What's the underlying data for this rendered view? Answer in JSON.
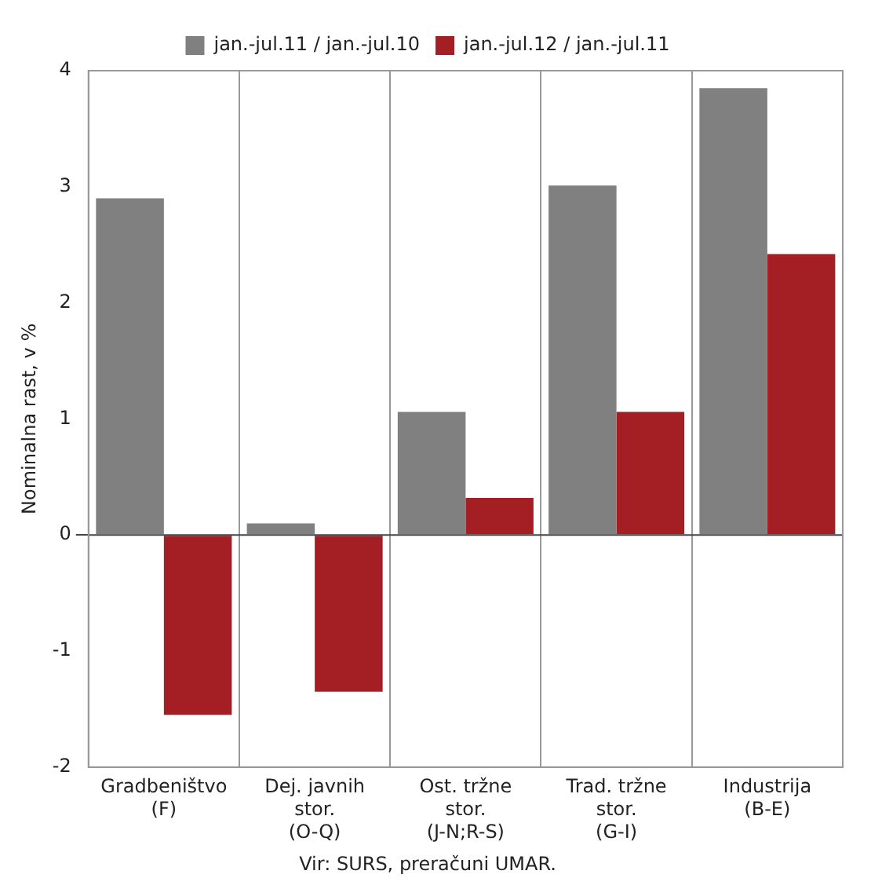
{
  "chart_data": {
    "type": "bar",
    "ylabel": "Nominalna rast, v %",
    "categories": [
      "Gradbeništvo\n(F)",
      "Dej. javnih\nstor.\n(O-Q)",
      "Ost. tržne\nstor.\n(J-N;R-S)",
      "Trad. tržne\nstor.\n(G-I)",
      "Industrija\n(B-E)"
    ],
    "series": [
      {
        "name": "jan.-jul.11 / jan.-jul.10",
        "color": "#808080",
        "values": [
          2.9,
          0.1,
          1.06,
          3.01,
          3.85
        ]
      },
      {
        "name": "jan.-jul.12 / jan.-jul.11",
        "color": "#a31f24",
        "values": [
          -1.55,
          -1.35,
          0.32,
          1.06,
          2.42
        ]
      }
    ],
    "ylim": [
      -2,
      4
    ],
    "yticks": [
      -2,
      -1,
      0,
      1,
      2,
      3,
      4
    ],
    "grid": "x",
    "legend": "top",
    "annotations": [
      "Vir: SURS, preračuni UMAR."
    ]
  }
}
